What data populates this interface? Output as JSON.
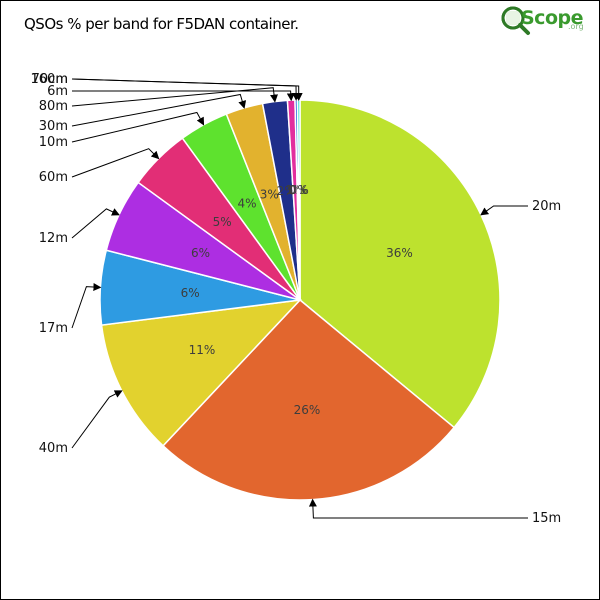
{
  "title": "QSOs % per band for F5DAN container.",
  "logo": {
    "brand": "Scope",
    "suffix": ".org"
  },
  "chart_data": {
    "type": "pie",
    "title": "QSOs % per band for F5DAN container.",
    "slices": [
      {
        "label": "20m",
        "value": 36,
        "pct_label": "36%",
        "color": "#bde22e"
      },
      {
        "label": "15m",
        "value": 26,
        "pct_label": "26%",
        "color": "#e2662e"
      },
      {
        "label": "40m",
        "value": 11,
        "pct_label": "11%",
        "color": "#e2d22e"
      },
      {
        "label": "17m",
        "value": 6,
        "pct_label": "6%",
        "color": "#2e9be2"
      },
      {
        "label": "12m",
        "value": 6,
        "pct_label": "6%",
        "color": "#ad2ee2"
      },
      {
        "label": "60m",
        "value": 5,
        "pct_label": "5%",
        "color": "#e22e76"
      },
      {
        "label": "10m",
        "value": 4,
        "pct_label": "4%",
        "color": "#5ee22e"
      },
      {
        "label": "30m",
        "value": 3,
        "pct_label": "3%",
        "color": "#e2b22e"
      },
      {
        "label": "80m",
        "value": 2,
        "pct_label": "2%",
        "color": "#1f2f8a"
      },
      {
        "label": "6m",
        "value": 0.6,
        "pct_label": "1%",
        "color": "#e22e9e"
      },
      {
        "label": "160m",
        "value": 0.2,
        "pct_label": "0%",
        "color": "#2e62e2"
      },
      {
        "label": "70cm",
        "value": 0.2,
        "pct_label": "0%",
        "color": "#2ee2c8"
      }
    ]
  }
}
